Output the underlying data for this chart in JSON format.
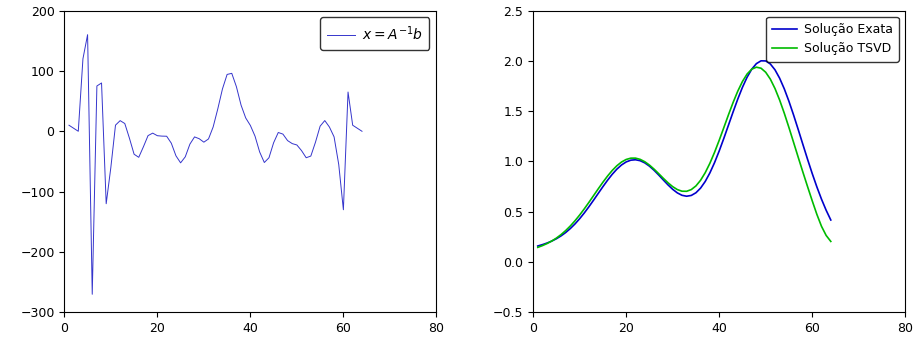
{
  "left_xlim": [
    0,
    80
  ],
  "left_ylim": [
    -300,
    200
  ],
  "left_xticks": [
    0,
    20,
    40,
    60,
    80
  ],
  "left_yticks": [
    -300,
    -200,
    -100,
    0,
    100,
    200
  ],
  "left_line_color": "#3535cc",
  "right_xlim": [
    0,
    80
  ],
  "right_ylim": [
    -0.5,
    2.5
  ],
  "right_xticks": [
    0,
    20,
    40,
    60,
    80
  ],
  "right_yticks": [
    -0.5,
    0.0,
    0.5,
    1.0,
    1.5,
    2.0,
    2.5
  ],
  "right_legend_exact": "Solução Exata",
  "right_legend_tsvd": "Solução TSVD",
  "exact_color": "#0000cc",
  "tsvd_color": "#00bb00",
  "n_points": 64,
  "background_color": "#ffffff",
  "fig_width": 9.19,
  "fig_height": 3.51
}
